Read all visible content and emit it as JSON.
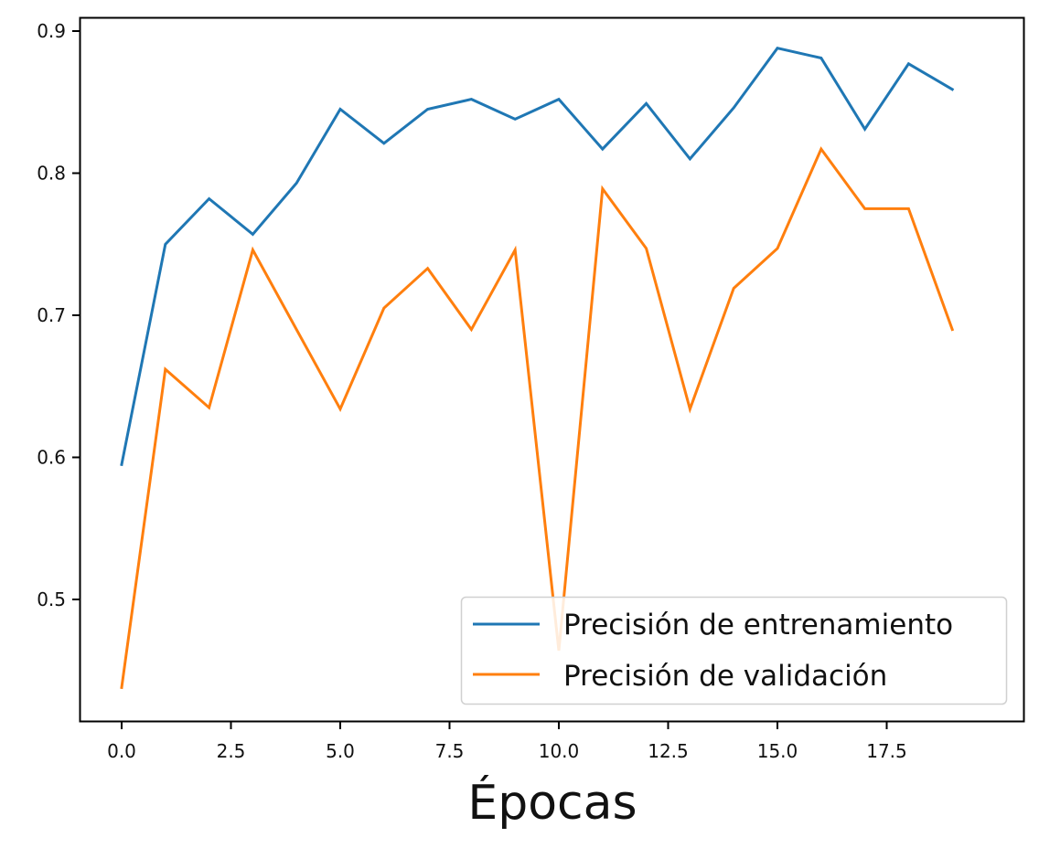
{
  "chart_data": {
    "type": "line",
    "title": "",
    "xlabel": "Épocas",
    "ylabel": "",
    "x": [
      0,
      1,
      2,
      3,
      4,
      5,
      6,
      7,
      8,
      9,
      10,
      11,
      12,
      13,
      14,
      15,
      16,
      17,
      18,
      19
    ],
    "series": [
      {
        "name": "Precisión de entrenamiento",
        "color": "#1f77b4",
        "values": [
          0.595,
          0.75,
          0.782,
          0.757,
          0.793,
          0.845,
          0.821,
          0.845,
          0.852,
          0.838,
          0.852,
          0.817,
          0.849,
          0.81,
          0.846,
          0.888,
          0.881,
          0.831,
          0.877,
          0.859
        ]
      },
      {
        "name": "Precisión de validación",
        "color": "#ff7f0e",
        "values": [
          0.438,
          0.662,
          0.635,
          0.746,
          0.69,
          0.634,
          0.705,
          0.733,
          0.69,
          0.746,
          0.464,
          0.789,
          0.747,
          0.634,
          0.719,
          0.747,
          0.817,
          0.775,
          0.775,
          0.69
        ]
      }
    ],
    "xlim": [
      -0.95,
      19.95
    ],
    "ylim": [
      0.427,
      0.911
    ],
    "xticks": [
      0.0,
      2.5,
      5.0,
      7.5,
      10.0,
      12.5,
      15.0,
      17.5
    ],
    "xtick_labels": [
      "0.0",
      "2.5",
      "5.0",
      "7.5",
      "10.0",
      "12.5",
      "15.0",
      "17.5"
    ],
    "yticks": [
      0.5,
      0.6,
      0.7,
      0.8,
      0.9
    ],
    "ytick_labels": [
      "0.5",
      "0.6",
      "0.7",
      "0.8",
      "0.9"
    ],
    "grid": false,
    "legend_position": "lower right"
  },
  "legend": {
    "items": [
      {
        "label": "Precisión de entrenamiento",
        "color": "#1f77b4"
      },
      {
        "label": "Precisión de validación",
        "color": "#ff7f0e"
      }
    ]
  },
  "axes": {
    "xlabel": "Épocas"
  }
}
